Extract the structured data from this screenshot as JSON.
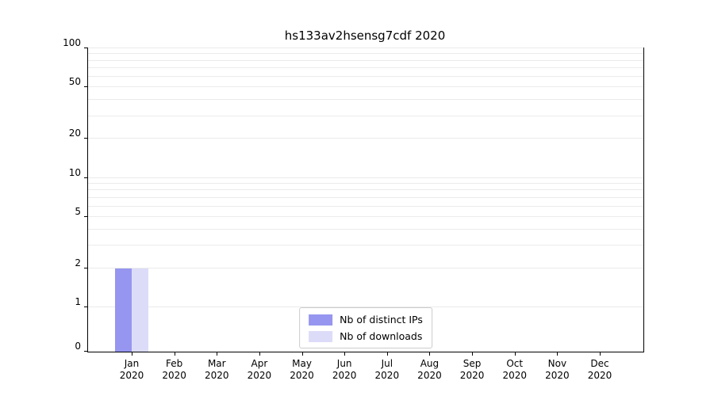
{
  "chart_data": {
    "type": "bar",
    "title": "hs133av2hsensg7cdf 2020",
    "categories": [
      "Jan",
      "Feb",
      "Mar",
      "Apr",
      "May",
      "Jun",
      "Jul",
      "Aug",
      "Sep",
      "Oct",
      "Nov",
      "Dec"
    ],
    "category_year": "2020",
    "series": [
      {
        "name": "Nb of distinct IPs",
        "color": "#9696f0",
        "values": [
          2,
          0,
          0,
          0,
          0,
          0,
          0,
          0,
          0,
          0,
          0,
          0
        ]
      },
      {
        "name": "Nb of downloads",
        "color": "#dcdcf9",
        "values": [
          2,
          0,
          0,
          0,
          0,
          0,
          0,
          0,
          0,
          0,
          0,
          0
        ]
      }
    ],
    "y_ticks": [
      0,
      1,
      2,
      5,
      10,
      20,
      50,
      100
    ],
    "minor_gridlines": [
      1,
      2,
      3,
      4,
      5,
      6,
      7,
      8,
      9,
      10,
      20,
      30,
      40,
      50,
      60,
      70,
      80,
      90,
      100
    ],
    "ylim": [
      0,
      100
    ],
    "yscale": "symlog",
    "grid": true,
    "legend_position": "lower center"
  }
}
